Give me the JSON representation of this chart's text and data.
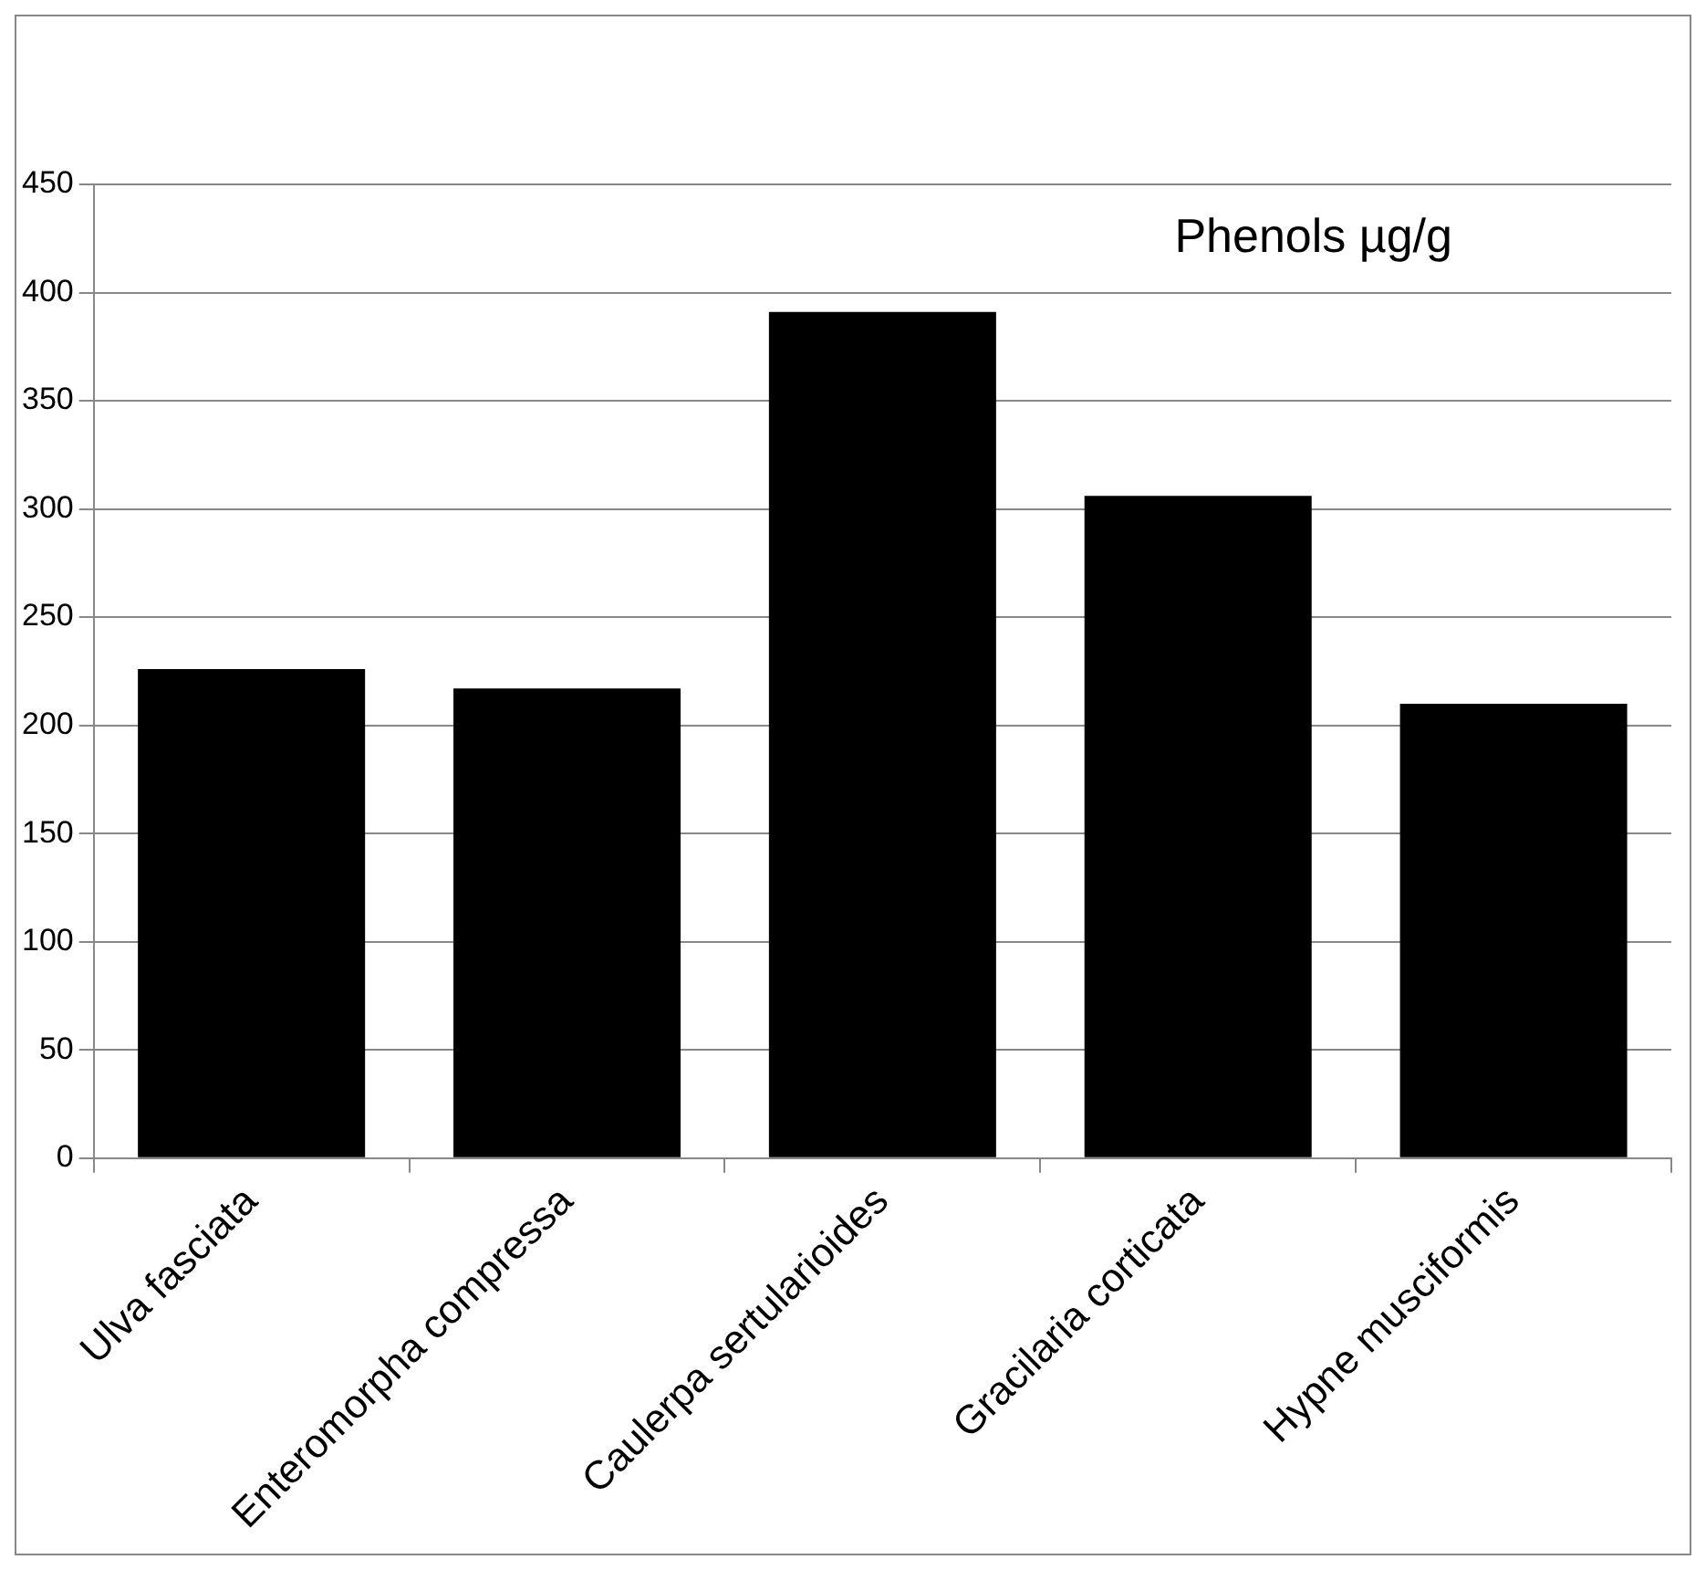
{
  "chart_data": {
    "type": "bar",
    "title": "Phenols µg/g",
    "categories": [
      "Ulva fasciata",
      "Enteromorpha compressa",
      "Caulerpa sertularioides",
      "Gracilaria corticata",
      "Hypne musciformis"
    ],
    "series": [
      {
        "color": "#000000",
        "values": [
          226,
          217,
          391,
          306,
          210
        ]
      }
    ],
    "ylim": [
      0,
      450
    ],
    "yticks": [
      0,
      50,
      100,
      150,
      200,
      250,
      300,
      350,
      400,
      450
    ],
    "grid": "y",
    "legend": false
  }
}
